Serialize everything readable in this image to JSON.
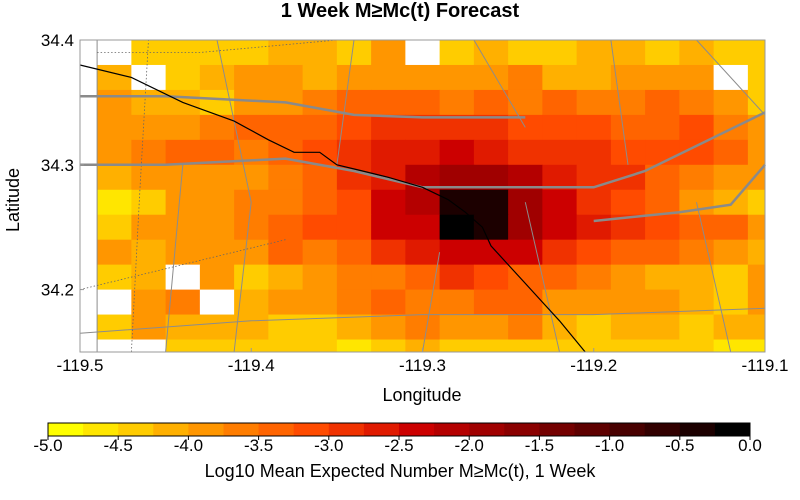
{
  "chart_data": {
    "type": "heatmap",
    "title": "1 Week M≥Mc(t) Forecast",
    "xlabel": "Longitude",
    "ylabel": "Latitude",
    "xlim": [
      -119.5,
      -119.1
    ],
    "ylim": [
      34.15,
      34.4
    ],
    "x_ticks": [
      "-119.5",
      "-119.4",
      "-119.3",
      "-119.2",
      "-119.1"
    ],
    "x_tick_values": [
      -119.5,
      -119.4,
      -119.3,
      -119.2,
      -119.1
    ],
    "y_ticks": [
      "34.2",
      "34.3",
      "34.4"
    ],
    "y_tick_values": [
      34.2,
      34.3,
      34.4
    ],
    "grid": false,
    "cell_lon": -119.48,
    "cell_lat": 34.39,
    "cell_size_deg": 0.02,
    "rows_north_to_south": [
      [
        -5.0,
        -4.5,
        -4.3,
        -4.3,
        -4.3,
        -4.2,
        -4.2,
        -4.3,
        -4.0,
        -5.0,
        -4.3,
        -4.2,
        -4.4,
        -4.3,
        -4.2,
        -4.1,
        -4.3,
        -4.2,
        -4.5,
        -4.3
      ],
      [
        -4.2,
        -5.0,
        -4.3,
        -4.1,
        -4.0,
        -4.0,
        -4.1,
        -4.0,
        -3.8,
        -4.0,
        -3.8,
        -3.9,
        -3.7,
        -4.2,
        -4.2,
        -4.0,
        -3.8,
        -4.0,
        -5.0,
        -4.5
      ],
      [
        -4.0,
        -4.2,
        -4.1,
        -4.3,
        -4.0,
        -3.8,
        -3.6,
        -3.5,
        -3.4,
        -3.4,
        -3.7,
        -3.5,
        -3.7,
        -3.5,
        -3.6,
        -3.6,
        -3.3,
        -3.6,
        -4.0,
        -4.3
      ],
      [
        -3.9,
        -4.0,
        -3.8,
        -3.7,
        -3.3,
        -3.3,
        -3.3,
        -3.2,
        -2.9,
        -3.0,
        -2.9,
        -3.0,
        -3.2,
        -3.2,
        -3.2,
        -3.4,
        -3.3,
        -3.1,
        -3.6,
        -4.0
      ],
      [
        -3.9,
        -3.7,
        -3.5,
        -3.3,
        -3.6,
        -3.4,
        -3.2,
        -3.0,
        -2.6,
        -2.6,
        -2.4,
        -2.6,
        -2.8,
        -3.0,
        -3.0,
        -3.1,
        -3.1,
        -3.2,
        -3.4,
        -3.8
      ],
      [
        -4.2,
        -4.0,
        -3.8,
        -3.8,
        -3.9,
        -3.7,
        -3.5,
        -3.0,
        -2.6,
        -2.2,
        -2.0,
        -1.9,
        -2.2,
        -2.6,
        -2.9,
        -3.0,
        -3.3,
        -3.6,
        -3.8,
        -4.0
      ],
      [
        -4.6,
        -4.3,
        -4.0,
        -4.0,
        -3.7,
        -3.6,
        -3.4,
        -3.2,
        -2.5,
        -2.1,
        -0.4,
        -0.3,
        -2.0,
        -2.5,
        -2.8,
        -3.2,
        -3.4,
        -3.9,
        -4.1,
        -4.3
      ],
      [
        -4.5,
        -3.9,
        -3.8,
        -3.9,
        -3.6,
        -3.5,
        -3.2,
        -3.1,
        -2.4,
        -2.3,
        -0.2,
        -0.3,
        -1.8,
        -2.5,
        -2.7,
        -3.0,
        -3.1,
        -3.3,
        -3.5,
        -3.8
      ],
      [
        -3.8,
        -4.1,
        -4.0,
        -4.0,
        -3.8,
        -3.5,
        -3.7,
        -3.4,
        -2.9,
        -2.7,
        -2.4,
        -2.4,
        -2.5,
        -2.9,
        -3.1,
        -3.4,
        -3.5,
        -3.6,
        -3.8,
        -4.1
      ],
      [
        -4.3,
        -4.1,
        -5.0,
        -4.0,
        -4.3,
        -4.1,
        -3.8,
        -3.6,
        -3.6,
        -3.4,
        -2.9,
        -3.1,
        -3.3,
        -3.5,
        -3.6,
        -3.8,
        -4.1,
        -4.2,
        -4.3,
        -4.0
      ],
      [
        -5.0,
        -3.8,
        -3.6,
        -5.0,
        -4.2,
        -4.0,
        -3.8,
        -3.6,
        -3.4,
        -3.6,
        -3.6,
        -3.4,
        -3.5,
        -3.9,
        -3.8,
        -3.9,
        -4.0,
        -4.1,
        -4.4,
        -4.0
      ],
      [
        -4.3,
        -4.0,
        -4.1,
        -4.1,
        -4.2,
        -4.3,
        -4.5,
        -4.2,
        -4.0,
        -3.7,
        -3.9,
        -4.0,
        -3.7,
        -4.1,
        -4.3,
        -4.2,
        -4.2,
        -4.3,
        -4.1,
        -4.2
      ],
      [
        -5.0,
        -5.0,
        -4.4,
        -4.4,
        -4.3,
        -4.4,
        -4.4,
        -4.6,
        -4.4,
        -4.2,
        -4.3,
        -4.4,
        -4.3,
        -4.3,
        -4.3,
        -4.5,
        -4.4,
        -4.3,
        -4.6,
        -4.6
      ]
    ],
    "colorbar": {
      "label": "Log10 Mean Expected Number M≥Mc(t), 1 Week",
      "min": -5.0,
      "max": 0.0,
      "ticks": [
        "-5.0",
        "-4.5",
        "-4.0",
        "-3.5",
        "-3.0",
        "-2.5",
        "-2.0",
        "-1.5",
        "-1.0",
        "-0.5",
        "0.0"
      ],
      "tick_values": [
        -5.0,
        -4.5,
        -4.0,
        -3.5,
        -3.0,
        -2.5,
        -2.0,
        -1.5,
        -1.0,
        -0.5,
        0.0
      ],
      "colors": [
        "#ffff00",
        "#ffe600",
        "#ffcc00",
        "#ffb000",
        "#ff9600",
        "#ff7d00",
        "#ff6400",
        "#ff4b00",
        "#f03200",
        "#e01a00",
        "#cc0000",
        "#b40000",
        "#a00000",
        "#8a0000",
        "#740000",
        "#5e0000",
        "#480000",
        "#320000",
        "#1c0000",
        "#000000"
      ]
    },
    "overlays": {
      "coastline": [
        [
          -119.5,
          34.38
        ],
        [
          -119.47,
          34.37
        ],
        [
          -119.44,
          34.35
        ],
        [
          -119.41,
          34.335
        ],
        [
          -119.39,
          34.32
        ],
        [
          -119.375,
          34.31
        ],
        [
          -119.36,
          34.31
        ],
        [
          -119.35,
          34.3
        ],
        [
          -119.335,
          34.295
        ],
        [
          -119.32,
          34.29
        ],
        [
          -119.3,
          34.282
        ],
        [
          -119.285,
          34.272
        ],
        [
          -119.275,
          34.262
        ],
        [
          -119.265,
          34.25
        ],
        [
          -119.26,
          34.235
        ],
        [
          -119.25,
          34.22
        ],
        [
          -119.24,
          34.205
        ],
        [
          -119.23,
          34.19
        ],
        [
          -119.22,
          34.175
        ],
        [
          -119.205,
          34.15
        ]
      ],
      "highways": [
        [
          [
            -119.5,
            34.355
          ],
          [
            -119.45,
            34.355
          ],
          [
            -119.38,
            34.35
          ],
          [
            -119.34,
            34.34
          ],
          [
            -119.3,
            34.338
          ],
          [
            -119.24,
            34.338
          ]
        ],
        [
          [
            -119.5,
            34.3
          ],
          [
            -119.45,
            34.3
          ],
          [
            -119.38,
            34.305
          ],
          [
            -119.34,
            34.295
          ],
          [
            -119.3,
            34.282
          ],
          [
            -119.2,
            34.282
          ],
          [
            -119.17,
            34.295
          ],
          [
            -119.1,
            34.342
          ]
        ],
        [
          [
            -119.2,
            34.255
          ],
          [
            -119.15,
            34.262
          ],
          [
            -119.12,
            34.268
          ],
          [
            -119.1,
            34.3
          ]
        ]
      ],
      "roads": [
        [
          [
            -119.49,
            34.15
          ],
          [
            -119.49,
            34.4
          ]
        ],
        [
          [
            -119.41,
            34.15
          ],
          [
            -119.4,
            34.27
          ],
          [
            -119.42,
            34.4
          ]
        ],
        [
          [
            -119.45,
            34.15
          ],
          [
            -119.44,
            34.3
          ]
        ],
        [
          [
            -119.34,
            34.4
          ],
          [
            -119.35,
            34.3
          ]
        ],
        [
          [
            -119.27,
            34.4
          ],
          [
            -119.24,
            34.33
          ]
        ],
        [
          [
            -119.3,
            34.15
          ],
          [
            -119.29,
            34.23
          ]
        ],
        [
          [
            -119.24,
            34.27
          ],
          [
            -119.22,
            34.15
          ]
        ],
        [
          [
            -119.19,
            34.4
          ],
          [
            -119.18,
            34.3
          ]
        ],
        [
          [
            -119.14,
            34.4
          ],
          [
            -119.1,
            34.34
          ]
        ],
        [
          [
            -119.5,
            34.165
          ],
          [
            -119.4,
            34.175
          ],
          [
            -119.3,
            34.18
          ],
          [
            -119.2,
            34.18
          ],
          [
            -119.1,
            34.185
          ]
        ],
        [
          [
            -119.14,
            34.27
          ],
          [
            -119.12,
            34.15
          ]
        ]
      ],
      "boundaries": [
        [
          [
            -119.49,
            34.39
          ],
          [
            -119.43,
            34.39
          ],
          [
            -119.35,
            34.4
          ]
        ],
        [
          [
            -119.47,
            34.15
          ],
          [
            -119.465,
            34.28
          ],
          [
            -119.46,
            34.4
          ]
        ],
        [
          [
            -119.5,
            34.2
          ],
          [
            -119.44,
            34.22
          ],
          [
            -119.38,
            34.24
          ]
        ]
      ]
    }
  }
}
